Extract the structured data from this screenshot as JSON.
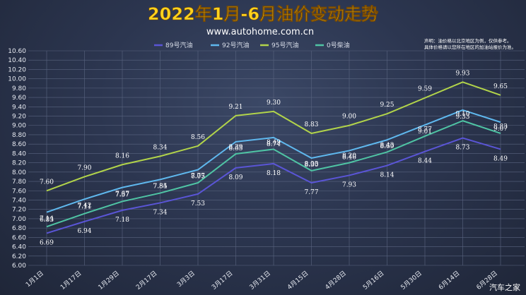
{
  "title": "2022年1月-6月油价变动走势",
  "subtitle": "www.autohome.com.cn",
  "note": {
    "line1": "声明：油价格以北京地区为例，仅供参考。",
    "line2": "具体价格请以您所在地区的加油站报价为准。"
  },
  "watermark": "汽车之家",
  "chart_data": {
    "type": "line",
    "categories": [
      "1月1日",
      "1月17日",
      "1月29日",
      "2月17日",
      "3月3日",
      "3月17日",
      "3月31日",
      "4月15日",
      "4月28日",
      "5月16日",
      "5月30日",
      "6月14日",
      "6月28日"
    ],
    "ylim": [
      6.0,
      10.6
    ],
    "yticks": [
      "10.60",
      "10.40",
      "10.20",
      "10.00",
      "9.80",
      "9.60",
      "9.40",
      "9.20",
      "9.00",
      "8.80",
      "8.60",
      "8.40",
      "8.20",
      "8.00",
      "7.80",
      "7.60",
      "7.40",
      "7.20",
      "7.00",
      "6.80",
      "6.60",
      "6.40",
      "6.20",
      "6.00"
    ],
    "grid": true,
    "legend_position": "top",
    "series": [
      {
        "name": "89号汽油",
        "color": "#5a55d6",
        "values": [
          6.69,
          6.94,
          7.18,
          7.34,
          7.53,
          8.09,
          8.18,
          7.77,
          7.93,
          8.14,
          8.44,
          8.73,
          8.49
        ],
        "labels": [
          "6.69",
          "6.94",
          "7.18",
          "7.34",
          "7.53",
          "8.09",
          "8.18",
          "7.77",
          "7.93",
          "8.14",
          "8.44",
          "8.73",
          "8.49"
        ]
      },
      {
        "name": "92号汽油",
        "color": "#5fb8ee",
        "values": [
          7.14,
          7.42,
          7.67,
          7.84,
          8.05,
          8.65,
          8.74,
          8.3,
          8.46,
          8.69,
          9.01,
          9.33,
          9.07
        ],
        "labels": [
          "7.14",
          "7.42",
          "7.67",
          "7.84",
          "8.05",
          "8.65",
          "8.74",
          "8.30",
          "8.46",
          "8.69",
          "9.01",
          "9.33",
          "9.07"
        ]
      },
      {
        "name": "95号汽油",
        "color": "#b2d44a",
        "values": [
          7.6,
          7.9,
          8.16,
          8.34,
          8.56,
          9.21,
          9.3,
          8.83,
          9.0,
          9.25,
          9.59,
          9.93,
          9.65
        ],
        "labels": [
          "7.60",
          "7.90",
          "8.16",
          "8.34",
          "8.56",
          "9.21",
          "9.30",
          "8.83",
          "9.00",
          "9.25",
          "9.59",
          "9.93",
          "9.65"
        ]
      },
      {
        "name": "0号柴油",
        "color": "#4fc4a4",
        "values": [
          6.83,
          7.11,
          7.37,
          7.55,
          7.77,
          8.39,
          8.49,
          8.03,
          8.2,
          8.43,
          8.77,
          9.1,
          8.83
        ],
        "labels": [
          "6.83",
          "7.11",
          "7.37",
          "7.55",
          "7.77",
          "8.39",
          "8.49",
          "8.03",
          "8.20",
          "8.43",
          "8.77",
          "9.10",
          "8.83"
        ]
      }
    ]
  }
}
